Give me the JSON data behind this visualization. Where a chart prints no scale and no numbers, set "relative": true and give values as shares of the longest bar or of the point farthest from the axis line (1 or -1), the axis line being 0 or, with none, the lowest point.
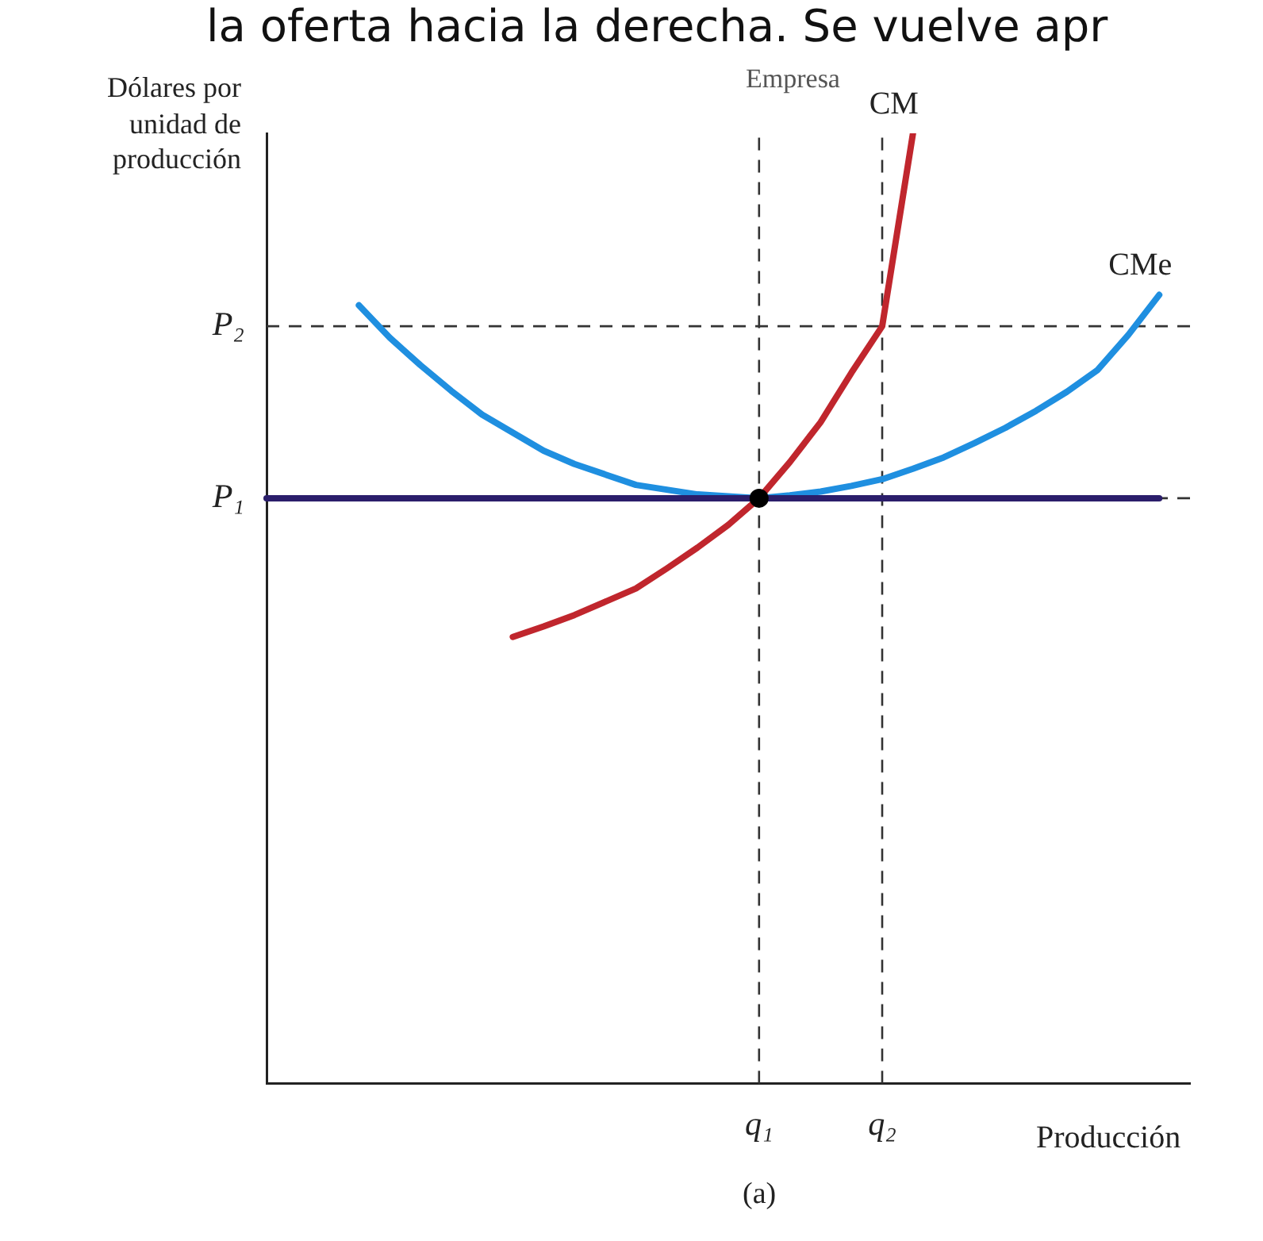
{
  "chart_data": {
    "type": "line",
    "relative": true,
    "title": "Empresa",
    "subtitle": "(a)",
    "xlabel": "Producción",
    "ylabel": "Dólares por unidad de producción",
    "annotations": [
      "la oferta hacia la derecha. Se vuelve apr"
    ],
    "tick_labels": "x",
    "grid": false,
    "legend": false,
    "marker": "none",
    "line_style": "solid",
    "categories": [
      null,
      null,
      null,
      null,
      null,
      null,
      null,
      null,
      null,
      null,
      null,
      null,
      null,
      null,
      null,
      null,
      "q₁",
      null,
      null,
      null,
      "q₂",
      null,
      null,
      null,
      null,
      null,
      null,
      null,
      null,
      null,
      null
    ],
    "series": [
      {
        "name": "CM",
        "color": "#c0262d",
        "values": [
          null,
          null,
          null,
          null,
          null,
          null,
          null,
          null,
          0.47,
          0.481,
          0.493,
          0.507,
          0.521,
          0.542,
          0.564,
          0.588,
          0.616,
          0.654,
          0.696,
          0.748,
          0.797,
          1,
          null,
          null,
          null,
          null,
          null,
          null,
          null,
          null,
          null
        ]
      },
      {
        "name": "CMe",
        "color": "#1f8fe0",
        "values": [
          null,
          null,
          null,
          0.819,
          0.785,
          0.756,
          0.729,
          0.704,
          0.685,
          0.666,
          0.652,
          0.641,
          0.63,
          0.625,
          0.62,
          0.618,
          0.616,
          0.619,
          0.623,
          0.629,
          0.636,
          0.647,
          0.659,
          0.674,
          0.69,
          0.708,
          0.728,
          0.751,
          0.788,
          0.83,
          null
        ]
      },
      {
        "color": "#2b1e6b",
        "values": [
          0.616,
          0.616,
          0.616,
          0.616,
          0.616,
          0.616,
          0.616,
          0.616,
          0.616,
          0.616,
          0.616,
          0.616,
          0.616,
          0.616,
          0.616,
          0.616,
          0.616,
          0.616,
          0.616,
          0.616,
          0.616,
          0.616,
          0.616,
          0.616,
          0.616,
          0.616,
          0.616,
          0.616,
          0.616,
          0.616,
          null
        ]
      },
      {
        "type": "scatter",
        "marker": "circle",
        "color": "#000000",
        "x": [
          "q₁"
        ],
        "values": [
          0.616
        ]
      }
    ],
    "ref_lines": [
      {
        "axis": "y",
        "value": 0.797,
        "label": "P₂",
        "line_style": "dashed",
        "color": "#333333"
      },
      {
        "axis": "y",
        "value": 0.616,
        "label": "P₁",
        "line_style": "dashed",
        "color": "#333333"
      },
      {
        "axis": "x",
        "value": "q₁",
        "line_style": "dashed",
        "color": "#333333"
      },
      {
        "axis": "x",
        "value": "q₂",
        "line_style": "dashed",
        "color": "#333333"
      }
    ]
  }
}
